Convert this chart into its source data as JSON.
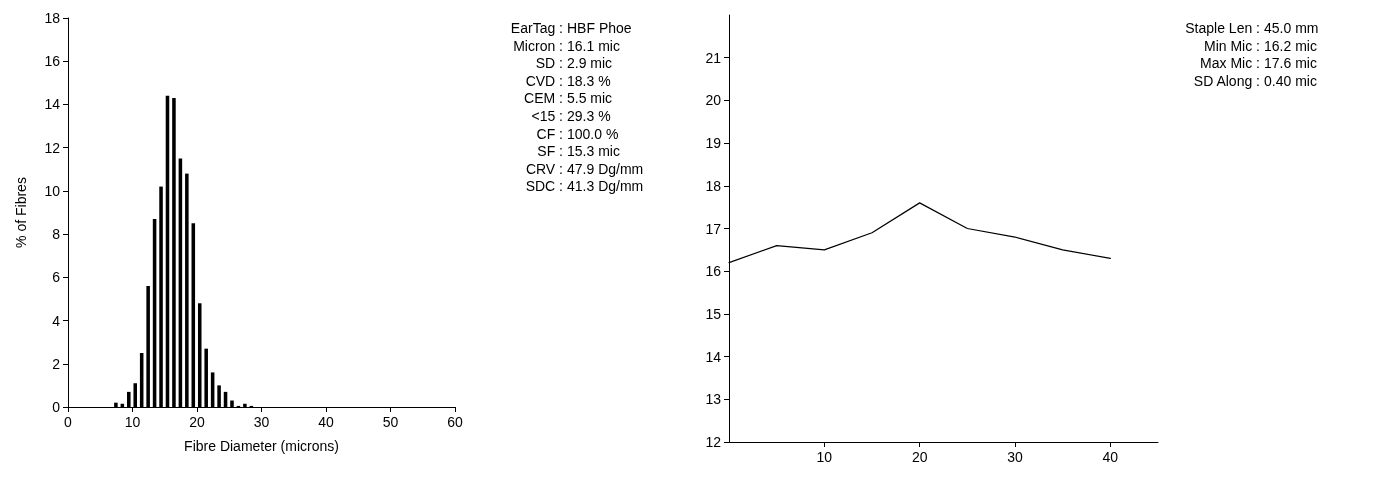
{
  "chart_data": [
    {
      "type": "histogram",
      "xlabel": "Fibre Diameter (microns)",
      "ylabel": "% of Fibres",
      "bins": [
        7,
        8,
        9,
        10,
        11,
        12,
        13,
        14,
        15,
        16,
        17,
        18,
        19,
        20,
        21,
        22,
        23,
        24,
        25,
        26,
        27,
        28,
        29
      ],
      "values": [
        0.2,
        0.15,
        0.7,
        1.1,
        2.5,
        5.6,
        8.7,
        10.2,
        14.4,
        14.3,
        11.5,
        10.8,
        8.5,
        4.8,
        2.7,
        1.6,
        1.0,
        0.7,
        0.3,
        0.05,
        0.15,
        0.05
      ],
      "color": "#000000",
      "xlim": [
        0,
        60
      ],
      "xticks": [
        0,
        10,
        20,
        30,
        40,
        50,
        60
      ],
      "ylim": [
        0,
        18
      ],
      "yticks": [
        0,
        2,
        4,
        6,
        8,
        10,
        12,
        14,
        16,
        18
      ],
      "grid": false
    },
    {
      "type": "other",
      "annotations": [
        "EarTag : HBF Phoe",
        "Micron : 16.1 mic",
        "SD : 2.9 mic",
        "CVD : 18.3 %",
        "CEM : 5.5 mic",
        "<15 : 29.3 %",
        "CF : 100.0 %",
        "SF : 15.3 mic",
        "CRV : 47.9 Dg/mm",
        "SDC : 41.3 Dg/mm"
      ]
    },
    {
      "type": "line",
      "x": [
        0,
        5,
        10,
        15,
        20,
        25,
        30,
        35,
        40
      ],
      "values": [
        16.2,
        16.6,
        16.5,
        16.9,
        17.6,
        17.0,
        16.8,
        16.5,
        16.3
      ],
      "color": "#000000",
      "marker": "none",
      "line_style": "solid",
      "xlim": [
        0,
        45
      ],
      "xticks": [
        10,
        20,
        30,
        40
      ],
      "ylim": [
        12,
        22
      ],
      "yticks": [
        12,
        13,
        14,
        15,
        16,
        17,
        18,
        19,
        20,
        21
      ],
      "grid": false
    },
    {
      "type": "other",
      "annotations": [
        "Staple Len : 45.0 mm",
        "Min Mic : 16.2 mic",
        "Max Mic : 17.6 mic",
        "SD Along : 0.40 mic"
      ]
    }
  ]
}
